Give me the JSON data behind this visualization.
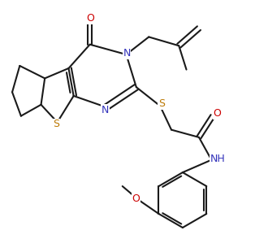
{
  "bg_color": "#ffffff",
  "line_color": "#1a1a1a",
  "N_color": "#3333bb",
  "S_color": "#bb7700",
  "O_color": "#cc0000",
  "line_width": 1.5,
  "figsize": [
    3.14,
    3.1
  ],
  "dpi": 100,
  "xlim": [
    0,
    10
  ],
  "ylim": [
    0,
    10
  ]
}
